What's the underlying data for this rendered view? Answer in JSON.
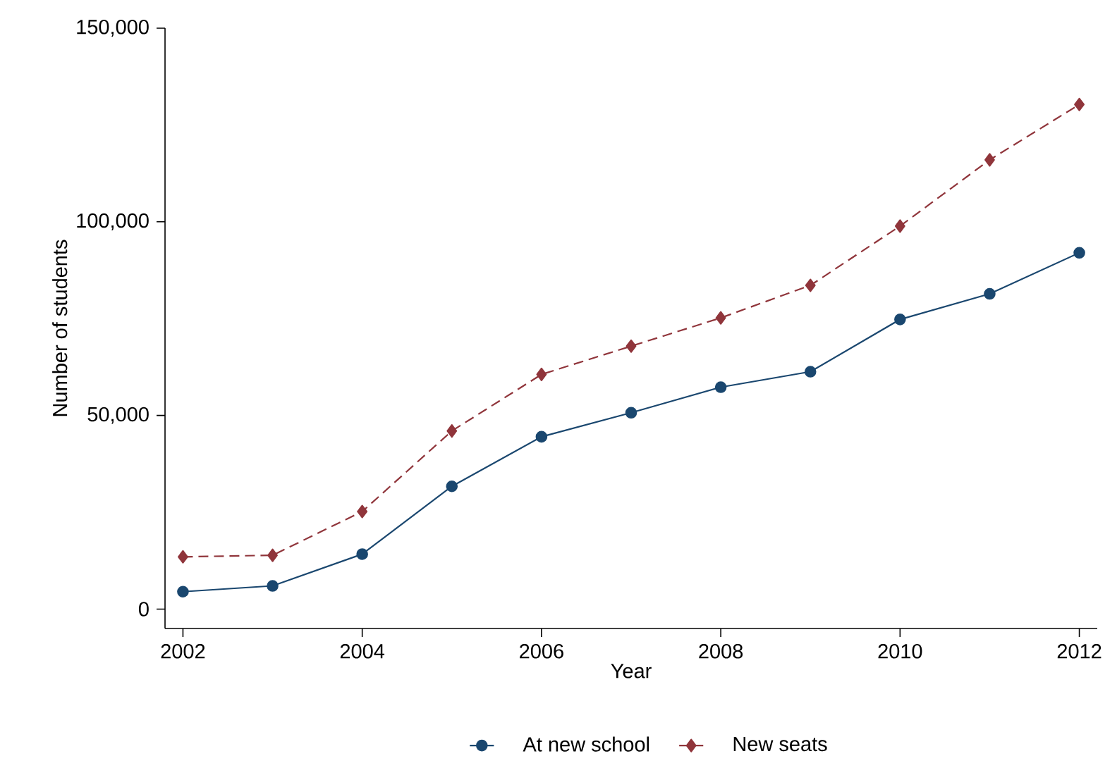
{
  "chart_data": {
    "type": "line",
    "xlabel": "Year",
    "ylabel": "Number of students",
    "x": [
      2002,
      2003,
      2004,
      2005,
      2006,
      2007,
      2008,
      2009,
      2010,
      2011,
      2012
    ],
    "series": [
      {
        "name": "At new school",
        "color": "#1a476f",
        "marker": "circle",
        "line_style": "solid",
        "values": [
          4500,
          6000,
          14200,
          31700,
          44500,
          50700,
          57300,
          61300,
          74800,
          81400,
          92000
        ]
      },
      {
        "name": "New seats",
        "color": "#90353b",
        "marker": "diamond",
        "line_style": "dashed",
        "values": [
          13500,
          13900,
          25200,
          46000,
          60600,
          67900,
          75200,
          83600,
          98900,
          116000,
          130300
        ]
      }
    ],
    "xlim": [
      2001.8,
      2012.2
    ],
    "ylim": [
      -5000,
      150000
    ],
    "xticks": [
      2002,
      2004,
      2006,
      2008,
      2010,
      2012
    ],
    "yticks": [
      {
        "value": 0,
        "label": "0"
      },
      {
        "value": 50000,
        "label": "50,000"
      },
      {
        "value": 100000,
        "label": "100,000"
      },
      {
        "value": 150000,
        "label": "150,000"
      }
    ],
    "grid": false,
    "legend": "bottom"
  }
}
